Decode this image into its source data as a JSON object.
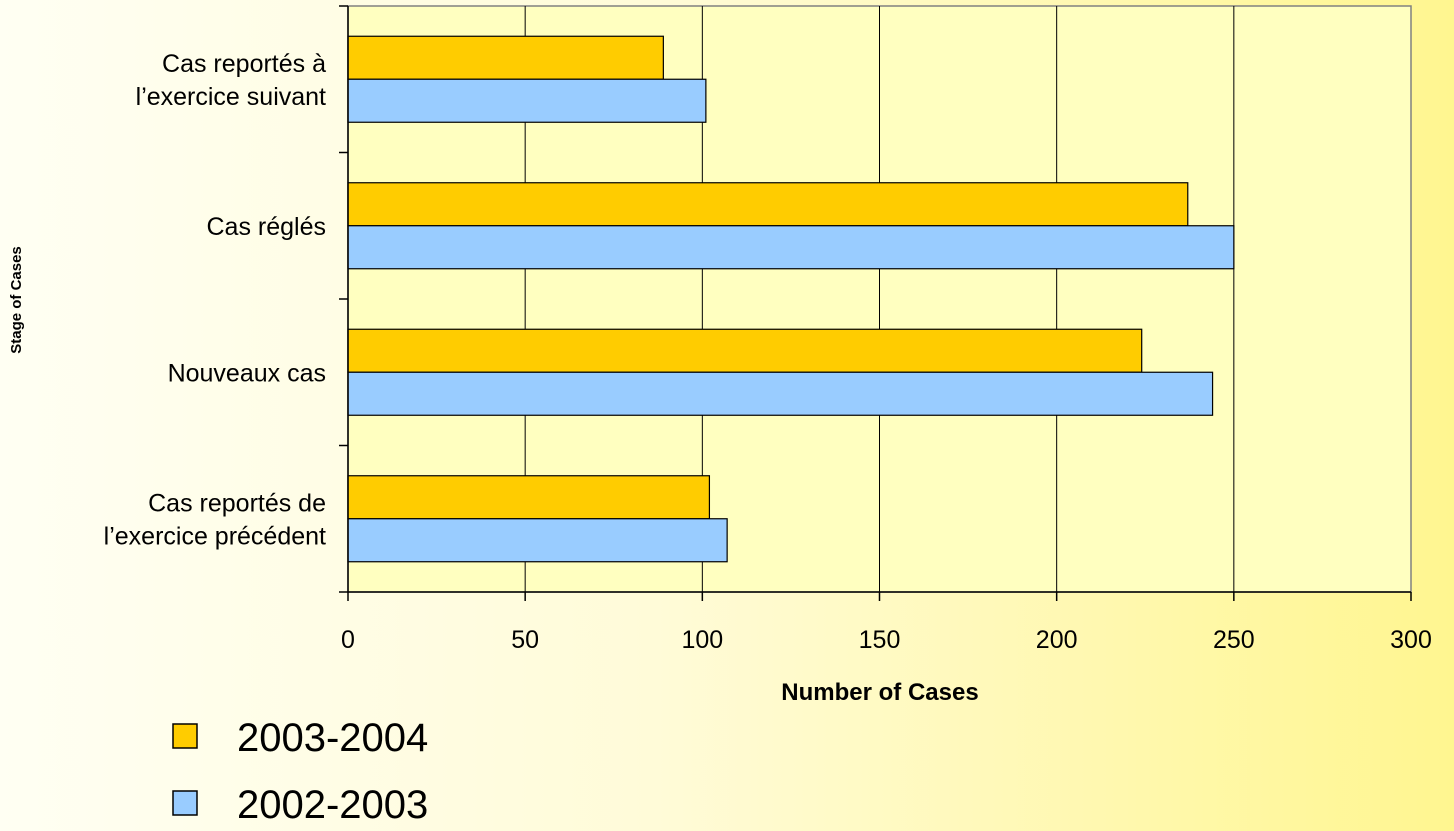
{
  "chart_data": {
    "type": "bar",
    "orientation": "horizontal",
    "categories": [
      [
        "Cas reportés à",
        "l’exercice suivant"
      ],
      [
        "Cas réglés"
      ],
      [
        "Nouveaux cas"
      ],
      [
        "Cas reportés de",
        "l’exercice précédent"
      ]
    ],
    "series": [
      {
        "name": "2003-2004",
        "color": "#ffcc00",
        "values": [
          89,
          237,
          224,
          102
        ]
      },
      {
        "name": "2002-2003",
        "color": "#99ccff",
        "values": [
          101,
          250,
          244,
          107
        ]
      }
    ],
    "xlabel": "Number of Cases",
    "ylabel": "Stage of Cases",
    "xlim": [
      0,
      300
    ],
    "xticks": [
      0,
      50,
      100,
      150,
      200,
      250,
      300
    ],
    "grid": true,
    "legend": "bottom-left",
    "plot_background": "#ffffc0"
  }
}
